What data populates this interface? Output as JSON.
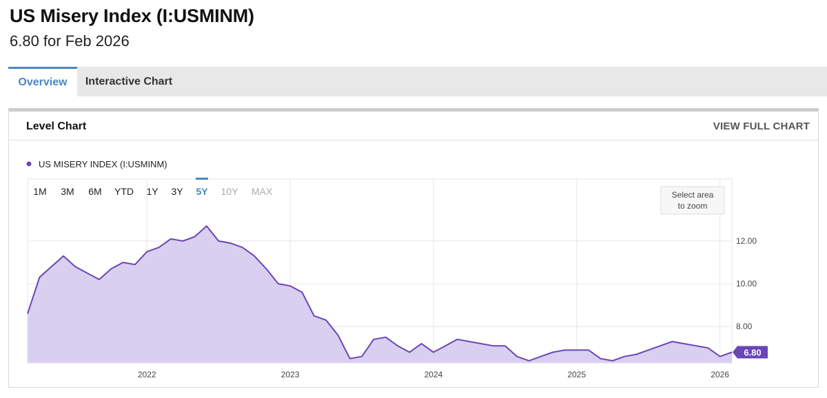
{
  "header": {
    "title": "US Misery Index (I:USMINM)",
    "subtitle": "6.80 for Feb 2026"
  },
  "tabs": [
    {
      "label": "Overview",
      "active": true
    },
    {
      "label": "Interactive Chart",
      "active": false
    }
  ],
  "card": {
    "title": "Level Chart",
    "view_full_label": "VIEW FULL CHART"
  },
  "zoom_hint": [
    "Select area",
    "to zoom"
  ],
  "range_buttons": [
    {
      "label": "1M",
      "state": "normal"
    },
    {
      "label": "3M",
      "state": "normal"
    },
    {
      "label": "6M",
      "state": "normal"
    },
    {
      "label": "YTD",
      "state": "normal"
    },
    {
      "label": "1Y",
      "state": "normal"
    },
    {
      "label": "3Y",
      "state": "normal"
    },
    {
      "label": "5Y",
      "state": "active"
    },
    {
      "label": "10Y",
      "state": "disabled"
    },
    {
      "label": "MAX",
      "state": "disabled"
    }
  ],
  "colors": {
    "series": "#6a45b6",
    "area": "#d9cff0",
    "active_tab": "#4a86c5",
    "grid": "#e6e6e6"
  },
  "chart_data": {
    "type": "area",
    "legend": "US MISERY INDEX (I:USMINM)",
    "x_ticks": [
      "2022",
      "2023",
      "2024",
      "2025",
      "2026"
    ],
    "x_range": [
      "2021-03",
      "2026-02"
    ],
    "y_ticks": [
      "8.00",
      "10.00",
      "12.00"
    ],
    "ylim": [
      6.3,
      14.9
    ],
    "last_value_label": "6.80",
    "series": [
      {
        "name": "US MISERY INDEX (I:USMINM)",
        "x": [
          "2021-03",
          "2021-04",
          "2021-05",
          "2021-06",
          "2021-07",
          "2021-08",
          "2021-09",
          "2021-10",
          "2021-11",
          "2021-12",
          "2022-01",
          "2022-02",
          "2022-03",
          "2022-04",
          "2022-05",
          "2022-06",
          "2022-07",
          "2022-08",
          "2022-09",
          "2022-10",
          "2022-11",
          "2022-12",
          "2023-01",
          "2023-02",
          "2023-03",
          "2023-04",
          "2023-05",
          "2023-06",
          "2023-07",
          "2023-08",
          "2023-09",
          "2023-10",
          "2023-11",
          "2023-12",
          "2024-01",
          "2024-02",
          "2024-03",
          "2024-04",
          "2024-05",
          "2024-06",
          "2024-07",
          "2024-08",
          "2024-09",
          "2024-10",
          "2024-11",
          "2024-12",
          "2025-01",
          "2025-02",
          "2025-03",
          "2025-04",
          "2025-05",
          "2025-06",
          "2025-07",
          "2025-08",
          "2025-09",
          "2025-10",
          "2025-11",
          "2025-12",
          "2026-01",
          "2026-02"
        ],
        "values": [
          8.6,
          10.3,
          10.8,
          11.3,
          10.8,
          10.5,
          10.2,
          10.7,
          11.0,
          10.9,
          11.5,
          11.7,
          12.1,
          12.0,
          12.2,
          12.7,
          12.0,
          11.9,
          11.7,
          11.3,
          10.7,
          10.0,
          9.9,
          9.6,
          8.5,
          8.3,
          7.6,
          6.5,
          6.6,
          7.4,
          7.5,
          7.1,
          6.8,
          7.2,
          6.8,
          7.1,
          7.4,
          7.3,
          7.2,
          7.1,
          7.1,
          6.6,
          6.4,
          6.6,
          6.8,
          6.9,
          6.9,
          6.9,
          6.5,
          6.4,
          6.6,
          6.7,
          6.9,
          7.1,
          7.3,
          7.2,
          7.1,
          7.0,
          6.6,
          6.8
        ]
      }
    ]
  }
}
